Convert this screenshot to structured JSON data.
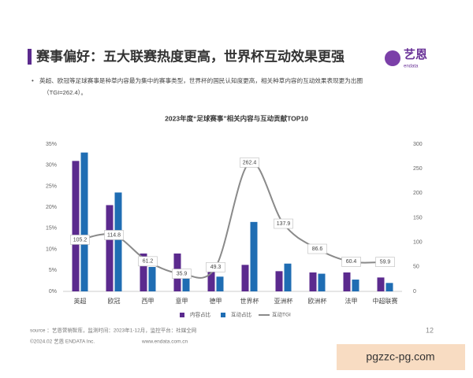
{
  "header": {
    "title": "赛事偏好：五大联赛热度更高，世界杯互动效果更强",
    "logo": "艺恩",
    "logo_sub": "endata"
  },
  "bullet": [
    "英超、欧冠等足球赛事是种草内容最为集中的赛事类型，世界杯的国民认知度更高，相关种草内容的互动效果表现更为出圈",
    "（TGI=262.4）。"
  ],
  "chart_data": {
    "type": "bar",
    "title": "2023年度“足球赛事”相关内容与互动贡献TOP10",
    "categories": [
      "英超",
      "欧冠",
      "西甲",
      "意甲",
      "德甲",
      "世界杯",
      "亚洲杯",
      "欧洲杯",
      "法甲",
      "中超联赛"
    ],
    "series": [
      {
        "name": "内容占比",
        "color": "#5b2a8e",
        "values": [
          31,
          20.5,
          9,
          9,
          6.5,
          6.3,
          4.8,
          4.5,
          4.5,
          3.3
        ]
      },
      {
        "name": "互动占比",
        "color": "#1f6db3",
        "values": [
          33,
          23.5,
          5.8,
          3.5,
          3.5,
          16.5,
          6.6,
          4.2,
          2.8,
          2
        ]
      },
      {
        "name": "互动TGI",
        "type": "line",
        "axis": "y2",
        "color": "#8a8a8a",
        "values": [
          105.2,
          114.8,
          61.2,
          35.9,
          49.3,
          262.4,
          137.9,
          86.6,
          60.4,
          59.9
        ]
      }
    ],
    "ylim": [
      0,
      35
    ],
    "yticks": [
      {
        "value": 0,
        "label": "0%"
      },
      {
        "value": 5,
        "label": "5%"
      },
      {
        "value": 10,
        "label": "10%"
      },
      {
        "value": 15,
        "label": "15%"
      },
      {
        "value": 20,
        "label": "20%"
      },
      {
        "value": 25,
        "label": "25%"
      },
      {
        "value": 30,
        "label": "30%"
      },
      {
        "value": 35,
        "label": "35%"
      }
    ],
    "y2lim": [
      0,
      300
    ],
    "y2ticks": [
      0,
      50,
      100,
      150,
      200,
      250,
      300
    ]
  },
  "footer": {
    "source": "source ：艺恩营销智库，监测时间：2023年1-12月，监控平台：社媒全网",
    "copyright": "©2024.02  艺恩 ENDATA Inc.",
    "website": "www.endata.com.cn",
    "page": "12"
  },
  "watermark": "pgzzc-pg.com"
}
